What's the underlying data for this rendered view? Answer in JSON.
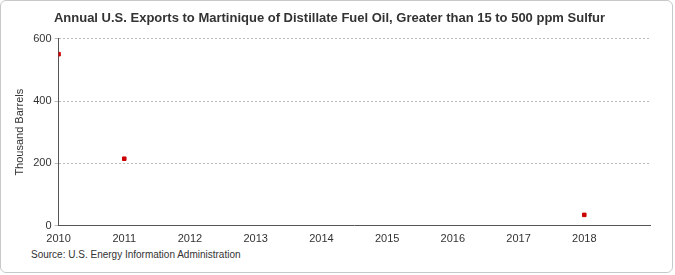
{
  "chart_data": {
    "type": "scatter",
    "title": "Annual U.S. Exports to Martinique of Distillate Fuel Oil, Greater than 15 to 500 ppm Sulfur",
    "y_label": "Thousand Barrels",
    "source": "Source: U.S. Energy Information Administration",
    "x": [
      2010,
      2011,
      2012,
      2013,
      2014,
      2015,
      2016,
      2017,
      2018
    ],
    "values": [
      550,
      215,
      null,
      null,
      null,
      null,
      null,
      null,
      35
    ],
    "color": "#cc0000",
    "marker": "square",
    "xlim": [
      2010,
      2019
    ],
    "xticks": [
      2010,
      2011,
      2012,
      2013,
      2014,
      2015,
      2016,
      2017,
      2018
    ],
    "ylim": [
      0,
      600
    ],
    "yticks": [
      0,
      200,
      400,
      600
    ],
    "grid": true
  }
}
